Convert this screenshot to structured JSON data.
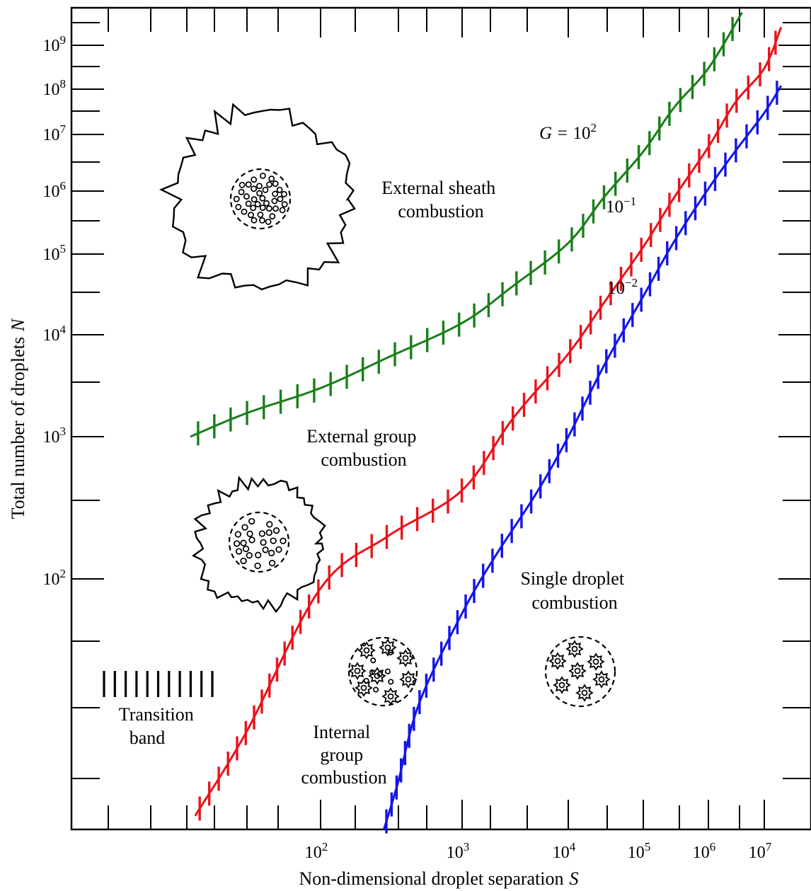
{
  "chart_data": {
    "type": "line",
    "xlabel": "Non-dimensional droplet separation",
    "xlabel_symbol": "S",
    "ylabel": "Total number of droplets",
    "ylabel_symbol": "N",
    "x_scale": "log",
    "y_scale": "nonuniform",
    "xlim": [
      8.5,
      28000000
    ],
    "ylim": [
      6,
      4200000000
    ],
    "x_ticks": [
      {
        "base": "10",
        "exp": "2",
        "value": 100
      },
      {
        "base": "10",
        "exp": "3",
        "value": 1000
      },
      {
        "base": "10",
        "exp": "4",
        "value": 10000
      },
      {
        "base": "10",
        "exp": "5",
        "value": 100000
      },
      {
        "base": "10",
        "exp": "6",
        "value": 1000000
      },
      {
        "base": "10",
        "exp": "7",
        "value": 10000000
      }
    ],
    "y_ticks": [
      {
        "base": "10",
        "exp": "2",
        "value": 100
      },
      {
        "base": "10",
        "exp": "3",
        "value": 1000
      },
      {
        "base": "10",
        "exp": "4",
        "value": 10000
      },
      {
        "base": "10",
        "exp": "5",
        "value": 100000
      },
      {
        "base": "10",
        "exp": "6",
        "value": 1000000
      },
      {
        "base": "10",
        "exp": "7",
        "value": 10000000
      },
      {
        "base": "10",
        "exp": "8",
        "value": 100000000
      },
      {
        "base": "10",
        "exp": "9",
        "value": 1000000000
      }
    ],
    "series": [
      {
        "name_prefix": "G = ",
        "name_base": "10",
        "name_exp": "2",
        "color": "#1a7f1a",
        "x": [
          12,
          30,
          100,
          300,
          1000,
          3000,
          10000,
          30000,
          100000,
          300000,
          1000000,
          4000000
        ],
        "y": [
          1000,
          1700,
          3000,
          6000,
          14000,
          40000,
          150000,
          800000,
          5000000,
          40000000,
          300000000,
          3500000000
        ]
      },
      {
        "name_base": "10",
        "name_exp": "−1",
        "color": "#e8141c",
        "x": [
          13,
          30,
          100,
          300,
          1000,
          3000,
          10000,
          30000,
          100000,
          300000,
          1000000,
          3000000,
          10000000,
          20000000
        ],
        "y": [
          7,
          18,
          90,
          200,
          420,
          1500,
          6500,
          25000,
          130000,
          800000,
          6000000,
          50000000,
          300000000,
          2000000000
        ]
      },
      {
        "name_base": "10",
        "name_exp": "−2",
        "color": "#1414e8",
        "x": [
          280,
          350,
          500,
          1000,
          2000,
          5000,
          10000,
          30000,
          100000,
          300000,
          1000000,
          3000000,
          10000000,
          20000000
        ],
        "y": [
          6,
          10,
          25,
          68,
          140,
          400,
          1000,
          5000,
          30000,
          160000,
          1100000,
          5000000,
          30000000,
          120000000
        ]
      }
    ],
    "annotations": [
      {
        "id": "external_sheath",
        "lines": [
          "External sheath",
          "combustion"
        ]
      },
      {
        "id": "external_group",
        "lines": [
          "External group",
          "combustion"
        ]
      },
      {
        "id": "internal_group",
        "lines": [
          "Internal",
          "group",
          "combustion"
        ]
      },
      {
        "id": "single_droplet",
        "lines": [
          "Single droplet",
          "combustion"
        ]
      },
      {
        "id": "transition_band",
        "lines": [
          "Transition",
          "band"
        ]
      }
    ],
    "grid": false,
    "legend": "none"
  }
}
